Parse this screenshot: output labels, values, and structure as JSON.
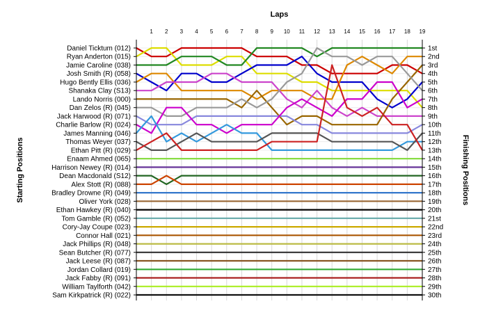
{
  "chart_data": {
    "type": "line",
    "title": "",
    "xlabel": "Laps",
    "ylabel_left": "Starting Positions",
    "ylabel_right": "Finishing Positions",
    "x": [
      0,
      1,
      2,
      3,
      4,
      5,
      6,
      7,
      8,
      9,
      10,
      11,
      12,
      13,
      14,
      15,
      16,
      17,
      18,
      19
    ],
    "x_tick_labels": [
      "1",
      "2",
      "3",
      "4",
      "5",
      "6",
      "7",
      "8",
      "9",
      "10",
      "11",
      "12",
      "13",
      "14",
      "15",
      "16",
      "17",
      "18",
      "19"
    ],
    "ylim": [
      1,
      30
    ],
    "y_inverted": true,
    "grid": true,
    "starting_grid": [
      "Daniel Ticktum (012)",
      "Ryan Anderton (015)",
      "Jamie Caroline (038)",
      "Josh Smith (R) (058)",
      "Hugo Bently Ellis (036)",
      "Shanaka Clay (S13)",
      "Lando Norris (000)",
      "Dan Zelos (R) (045)",
      "Jack Harwood (R) (071)",
      "Charlie Barlow (R) (024)",
      "James Manning (046)",
      "Thomas Weyer (037)",
      "Ethan Pitt (R) (029)",
      "Enaam Ahmed (065)",
      "Harrison Newey (R) (014)",
      "Dean Macdonald (S12)",
      "Alex Stott (R) (088)",
      "Bradley Drowne (R) (049)",
      "Oliver York (028)",
      "Ethan Hawkey (R) (040)",
      "Tom Gamble (R) (052)",
      "Cory-Jay Coupe (023)",
      "Connor Hall (021)",
      "Jack Phillips (R) (048)",
      "Sean Butcher (R) (077)",
      "Jack Leese (R) (087)",
      "Jordan Collard (019)",
      "Jack Fabby (R) (091)",
      "William Taylforth (042)",
      "Sam Kirkpatrick (R) (022)"
    ],
    "finishing_labels": [
      "1st",
      "2nd",
      "3rd",
      "4th",
      "5th",
      "6th",
      "7th",
      "8th",
      "9th",
      "10th",
      "11th",
      "12th",
      "13th",
      "14th",
      "15th",
      "16th",
      "17th",
      "18th",
      "19th",
      "20th",
      "21st",
      "22nd",
      "23rd",
      "24th",
      "25th",
      "26th",
      "27th",
      "28th",
      "29th",
      "30th"
    ],
    "series": [
      {
        "color": "#cc0000",
        "values": [
          1,
          2,
          2,
          1,
          1,
          1,
          1,
          1,
          2,
          2,
          2,
          3,
          3,
          4,
          4,
          4,
          4,
          3,
          3,
          4
        ]
      },
      {
        "color": "#dddd00",
        "values": [
          2,
          1,
          1,
          3,
          3,
          3,
          2,
          2,
          4,
          4,
          4,
          5,
          5,
          6,
          6,
          6,
          6,
          6,
          6,
          8
        ]
      },
      {
        "color": "#228822",
        "values": [
          3,
          3,
          3,
          2,
          2,
          2,
          3,
          3,
          1,
          1,
          1,
          1,
          2,
          1,
          1,
          1,
          1,
          1,
          1,
          1
        ]
      },
      {
        "color": "#0000cc",
        "values": [
          4,
          5,
          6,
          4,
          4,
          5,
          5,
          4,
          3,
          3,
          3,
          2,
          4,
          5,
          5,
          5,
          7,
          8,
          7,
          5
        ]
      },
      {
        "color": "#dd8800",
        "values": [
          5,
          4,
          4,
          6,
          6,
          6,
          6,
          6,
          7,
          6,
          6,
          6,
          7,
          7,
          3,
          2,
          3,
          4,
          2,
          2
        ]
      },
      {
        "color": "#cc44cc",
        "values": [
          6,
          6,
          5,
          5,
          5,
          4,
          4,
          5,
          5,
          5,
          7,
          8,
          6,
          8,
          9,
          8,
          9,
          9,
          9,
          9
        ]
      },
      {
        "color": "#996600",
        "values": [
          7,
          7,
          7,
          7,
          7,
          7,
          7,
          8,
          6,
          8,
          10,
          9,
          9,
          10,
          10,
          10,
          10,
          7,
          5,
          3
        ]
      },
      {
        "color": "#999999",
        "values": [
          8,
          8,
          9,
          9,
          8,
          8,
          8,
          7,
          8,
          7,
          5,
          4,
          1,
          2,
          2,
          3,
          2,
          2,
          4,
          6
        ]
      },
      {
        "color": "#8888dd",
        "values": [
          9,
          10,
          10,
          10,
          9,
          9,
          9,
          9,
          9,
          9,
          9,
          10,
          10,
          11,
          11,
          11,
          11,
          11,
          11,
          10
        ]
      },
      {
        "color": "#cc00cc",
        "values": [
          10,
          11,
          8,
          8,
          10,
          10,
          11,
          10,
          10,
          10,
          8,
          7,
          8,
          9,
          7,
          7,
          5,
          5,
          8,
          7
        ]
      },
      {
        "color": "#3399dd",
        "values": [
          11,
          9,
          12,
          11,
          12,
          11,
          10,
          11,
          11,
          13,
          13,
          13,
          13,
          13,
          13,
          13,
          13,
          13,
          12,
          12
        ]
      },
      {
        "color": "#555555",
        "values": [
          12,
          13,
          13,
          12,
          11,
          12,
          12,
          12,
          12,
          11,
          11,
          11,
          11,
          12,
          12,
          12,
          12,
          12,
          13,
          11
        ]
      },
      {
        "color": "#cc2222",
        "values": [
          13,
          12,
          11,
          13,
          13,
          13,
          13,
          13,
          13,
          12,
          12,
          12,
          12,
          3,
          8,
          9,
          8,
          10,
          10,
          13
        ]
      },
      {
        "color": "#88dd44",
        "values": [
          14,
          14,
          14,
          14,
          14,
          14,
          14,
          14,
          14,
          14,
          14,
          14,
          14,
          14,
          14,
          14,
          14,
          14,
          14,
          14
        ]
      },
      {
        "color": "#663399",
        "values": [
          15,
          15,
          15,
          15,
          15,
          15,
          15,
          15,
          15,
          15,
          15,
          15,
          15,
          15,
          15,
          15,
          15,
          15,
          15,
          15
        ]
      },
      {
        "color": "#226622",
        "values": [
          16,
          16,
          17,
          16,
          16,
          16,
          16,
          16,
          16,
          16,
          16,
          16,
          16,
          16,
          16,
          16,
          16,
          16,
          16,
          16
        ]
      },
      {
        "color": "#cc4400",
        "values": [
          17,
          17,
          16,
          17,
          17,
          17,
          17,
          17,
          17,
          17,
          17,
          17,
          17,
          17,
          17,
          17,
          17,
          17,
          17,
          17
        ]
      },
      {
        "color": "#3377cc",
        "values": [
          18,
          18,
          18,
          18,
          18,
          18,
          18,
          18,
          18,
          18,
          18,
          18,
          18,
          18,
          18,
          18,
          18,
          18,
          18,
          18
        ]
      },
      {
        "color": "#996633",
        "values": [
          19,
          19,
          19,
          19,
          19,
          19,
          19,
          19,
          19,
          19,
          19,
          19,
          19,
          19,
          19,
          19,
          19,
          19,
          19,
          19
        ]
      },
      {
        "color": "#000000",
        "values": [
          20,
          20,
          20,
          20,
          20,
          20,
          20,
          20,
          20,
          20,
          20,
          20,
          20,
          20,
          20,
          20,
          20,
          20,
          20,
          20
        ]
      },
      {
        "color": "#66aaaa",
        "values": [
          21,
          21,
          21,
          21,
          21,
          21,
          21,
          21,
          21,
          21,
          21,
          21,
          21,
          21,
          21,
          21,
          21,
          21,
          21,
          21
        ]
      },
      {
        "color": "#ccaa00",
        "values": [
          22,
          22,
          22,
          22,
          22,
          22,
          22,
          22,
          22,
          22,
          22,
          22,
          22,
          22,
          22,
          22,
          22,
          22,
          22,
          22
        ]
      },
      {
        "color": "#aa5500",
        "values": [
          23,
          23,
          23,
          23,
          23,
          23,
          23,
          23,
          23,
          23,
          23,
          23,
          23,
          23,
          23,
          23,
          23,
          23,
          23,
          23
        ]
      },
      {
        "color": "#bbbb44",
        "values": [
          24,
          24,
          24,
          24,
          24,
          24,
          24,
          24,
          24,
          24,
          24,
          24,
          24,
          24,
          24,
          24,
          24,
          24,
          24,
          24
        ]
      },
      {
        "color": "#333333",
        "values": [
          25,
          25,
          25,
          25,
          25,
          25,
          25,
          25,
          25,
          25,
          25,
          25,
          25,
          25,
          25,
          25,
          25,
          25,
          25,
          25
        ]
      },
      {
        "color": "#885522",
        "values": [
          26,
          26,
          26,
          26,
          26,
          26,
          26,
          26,
          26,
          26,
          26,
          26,
          26,
          26,
          26,
          26,
          26,
          26,
          26,
          26
        ]
      },
      {
        "color": "#33aa33",
        "values": [
          27,
          27,
          27,
          27,
          27,
          27,
          27,
          27,
          27,
          27,
          27,
          27,
          27,
          27,
          27,
          27,
          27,
          27,
          27,
          27
        ]
      },
      {
        "color": "#aa2222",
        "values": [
          28,
          28,
          28,
          28,
          28,
          28,
          28,
          28,
          28,
          28,
          28,
          28,
          28,
          28,
          28,
          28,
          28,
          28,
          28,
          28
        ]
      },
      {
        "color": "#aaee22",
        "values": [
          29,
          29,
          29,
          29,
          29,
          29,
          29,
          29,
          29,
          29,
          29,
          29,
          29,
          29,
          29,
          29,
          29,
          29,
          29,
          29
        ]
      },
      {
        "color": "#111111",
        "values": [
          30,
          30,
          30,
          30,
          30,
          30,
          30,
          30,
          30,
          30,
          30,
          30,
          30,
          30,
          30,
          30,
          30,
          30,
          30,
          30
        ]
      }
    ]
  }
}
